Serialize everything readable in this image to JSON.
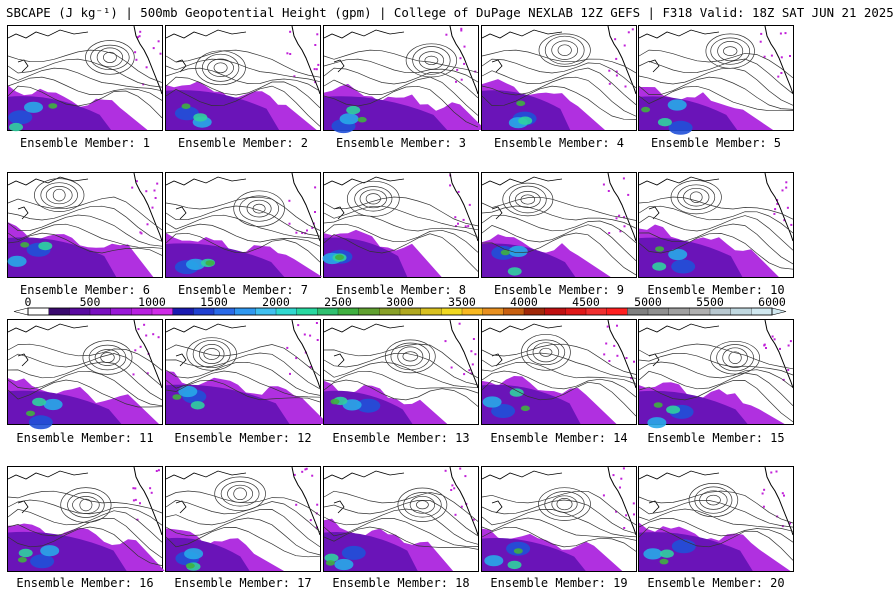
{
  "title": "SBCAPE (J kg⁻¹) | 500mb Geopotential Height (gpm) | College of DuPage NEXLAB 12Z GEFS | F318 Valid: 18Z SAT JUN 21 2025",
  "members": [
    {
      "label": "Ensemble Member: 1"
    },
    {
      "label": "Ensemble Member: 2"
    },
    {
      "label": "Ensemble Member: 3"
    },
    {
      "label": "Ensemble Member: 4"
    },
    {
      "label": "Ensemble Member: 5"
    },
    {
      "label": "Ensemble Member: 6"
    },
    {
      "label": "Ensemble Member: 7"
    },
    {
      "label": "Ensemble Member: 8"
    },
    {
      "label": "Ensemble Member: 9"
    },
    {
      "label": "Ensemble Member: 10"
    },
    {
      "label": "Ensemble Member: 11"
    },
    {
      "label": "Ensemble Member: 12"
    },
    {
      "label": "Ensemble Member: 13"
    },
    {
      "label": "Ensemble Member: 14"
    },
    {
      "label": "Ensemble Member: 15"
    },
    {
      "label": "Ensemble Member: 16"
    },
    {
      "label": "Ensemble Member: 17"
    },
    {
      "label": "Ensemble Member: 18"
    },
    {
      "label": "Ensemble Member: 19"
    },
    {
      "label": "Ensemble Member: 20"
    }
  ],
  "colorbar": {
    "ticks": [
      "0",
      "500",
      "1000",
      "1500",
      "2000",
      "2500",
      "3000",
      "3500",
      "4000",
      "4500",
      "5000",
      "5500",
      "6000"
    ],
    "colors": [
      "#ffffff",
      "#3a0a6e",
      "#5a0aa0",
      "#7a10c0",
      "#9a18d8",
      "#b820e0",
      "#d02ce8",
      "#1a1ab0",
      "#2040d0",
      "#2a6ae8",
      "#3098f0",
      "#40c0f0",
      "#30d8d0",
      "#28d8a0",
      "#30c070",
      "#40b040",
      "#60a030",
      "#88a028",
      "#b0a820",
      "#d8c020",
      "#f0d820",
      "#f8b820",
      "#e89020",
      "#c86010",
      "#a02808",
      "#c01010",
      "#e01818",
      "#f03030",
      "#ff2020",
      "#808080",
      "#909090",
      "#a0a0a0",
      "#b0b0b0",
      "#b8c8d0",
      "#c0d8e0",
      "#d0e8f0"
    ]
  }
}
